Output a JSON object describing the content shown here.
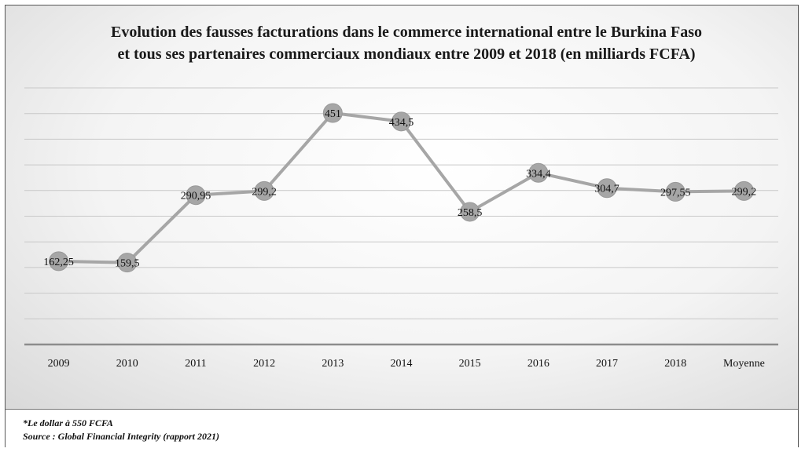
{
  "chart_data": {
    "type": "line",
    "title": "Evolution des fausses facturations dans le commerce international entre le Burkina Faso et tous ses partenaires commerciaux mondiaux entre 2009 et 2018 (en milliards FCFA)",
    "title_lines": [
      "Evolution des fausses facturations dans le commerce international entre le Burkina Faso",
      "et tous ses partenaires commerciaux mondiaux entre 2009 et 2018 (en milliards FCFA)"
    ],
    "categories": [
      "2009",
      "2010",
      "2011",
      "2012",
      "2013",
      "2014",
      "2015",
      "2016",
      "2017",
      "2018",
      "Moyenne"
    ],
    "series": [
      {
        "values": [
          162.25,
          159.5,
          290.95,
          299.2,
          451,
          434.5,
          258.5,
          334.4,
          304.7,
          297.55,
          299.2
        ],
        "labels": [
          "162,25",
          "159,5",
          "290,95",
          "299,2",
          "451",
          "434,5",
          "258,5",
          "334,4",
          "304,7",
          "297,55",
          "299,2"
        ]
      }
    ],
    "ylim": [
      0,
      500
    ],
    "grid": true,
    "line_color": "#a6a6a6",
    "marker_color": "#a6a6a6"
  },
  "footer": {
    "note": "*Le dollar à 550 FCFA",
    "source": "Source : Global Financial Integrity (rapport 2021)"
  }
}
